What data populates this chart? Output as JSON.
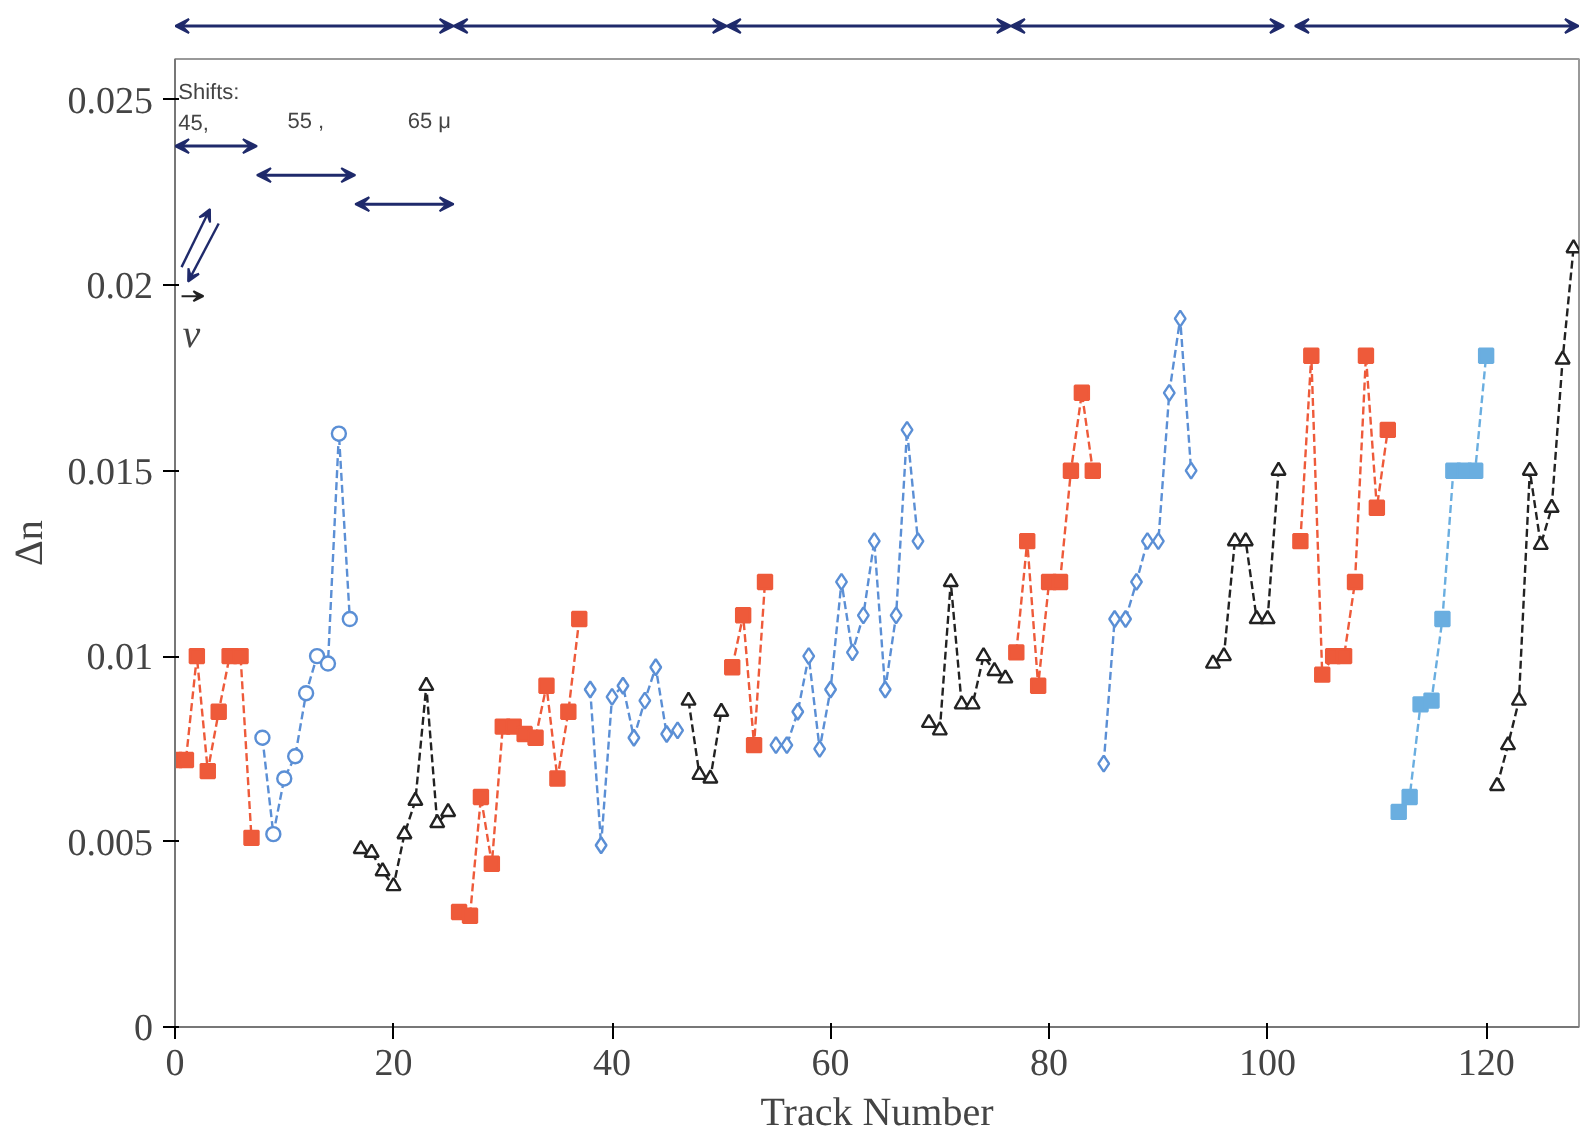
{
  "chart_data": {
    "type": "line",
    "xlabel": "Track Number",
    "ylabel": "Δn",
    "xlim": [
      0,
      128.5
    ],
    "ylim": [
      0,
      0.0261
    ],
    "xticks": [
      0,
      20,
      40,
      60,
      80,
      100,
      120
    ],
    "yticks": [
      0,
      0.005,
      0.01,
      0.015,
      0.02,
      0.025
    ],
    "grid": false,
    "line_style": "dashed",
    "annotations": [
      "Shifts:",
      "45,",
      "55 ,",
      "65 μ",
      "v"
    ],
    "series": [
      {
        "color": "#ee5a3a",
        "marker": "square",
        "x": [
          0,
          1,
          2,
          3,
          4,
          5,
          6,
          7
        ],
        "values": [
          0.0072,
          0.0072,
          0.01,
          0.0069,
          0.0085,
          0.01,
          0.01,
          0.0051
        ]
      },
      {
        "color": "#5b8fd5",
        "marker": "circle",
        "x": [
          8,
          9,
          10,
          11,
          12,
          13,
          14,
          15,
          16
        ],
        "values": [
          0.0078,
          0.0052,
          0.0067,
          0.0073,
          0.009,
          0.01,
          0.0098,
          0.016,
          0.011
        ]
      },
      {
        "color": "#222222",
        "marker": "triangle",
        "x": [
          17,
          18,
          19,
          20,
          21,
          22,
          23,
          24,
          25
        ],
        "values": [
          0.0048,
          0.0047,
          0.0042,
          0.0038,
          0.0052,
          0.0061,
          0.0092,
          0.0055,
          0.0058
        ]
      },
      {
        "color": "#ee5a3a",
        "marker": "square",
        "x": [
          26,
          27,
          28,
          29,
          30,
          31,
          32,
          33,
          34,
          35,
          36,
          37
        ],
        "values": [
          0.0031,
          0.003,
          0.0062,
          0.0044,
          0.0081,
          0.0081,
          0.0079,
          0.0078,
          0.0092,
          0.0067,
          0.0085,
          0.011
        ]
      },
      {
        "color": "#5b8fd5",
        "marker": "diamond",
        "x": [
          38,
          39,
          40,
          41,
          42,
          43,
          44,
          45,
          46
        ],
        "values": [
          0.0091,
          0.0049,
          0.0089,
          0.0092,
          0.0078,
          0.0088,
          0.0097,
          0.0079,
          0.008
        ]
      },
      {
        "color": "#222222",
        "marker": "triangle",
        "x": [
          47,
          48,
          49,
          50
        ],
        "values": [
          0.0088,
          0.0068,
          0.0067,
          0.0085
        ]
      },
      {
        "color": "#ee5a3a",
        "marker": "square",
        "x": [
          51,
          52,
          53,
          54
        ],
        "values": [
          0.0097,
          0.0111,
          0.0076,
          0.012
        ]
      },
      {
        "color": "#5b8fd5",
        "marker": "diamond",
        "x": [
          55,
          56,
          57,
          58,
          59,
          60,
          61,
          62,
          63,
          64,
          65,
          66,
          67,
          68
        ],
        "values": [
          0.0076,
          0.0076,
          0.0085,
          0.01,
          0.0075,
          0.0091,
          0.012,
          0.0101,
          0.0111,
          0.0131,
          0.0091,
          0.0111,
          0.0161,
          0.0131
        ]
      },
      {
        "color": "#222222",
        "marker": "triangle",
        "x": [
          69,
          70,
          71,
          72,
          73,
          74,
          75,
          76
        ],
        "values": [
          0.0082,
          0.008,
          0.012,
          0.0087,
          0.0087,
          0.01,
          0.0096,
          0.0094
        ]
      },
      {
        "color": "#ee5a3a",
        "marker": "square",
        "x": [
          77,
          78,
          79,
          80,
          81,
          82,
          83,
          84
        ],
        "values": [
          0.0101,
          0.0131,
          0.0092,
          0.012,
          0.012,
          0.015,
          0.0171,
          0.015
        ]
      },
      {
        "color": "#5b8fd5",
        "marker": "diamond",
        "x": [
          85,
          86,
          87,
          88,
          89,
          90,
          91,
          92,
          93
        ],
        "values": [
          0.0071,
          0.011,
          0.011,
          0.012,
          0.0131,
          0.0131,
          0.0171,
          0.0191,
          0.015
        ]
      },
      {
        "color": "#222222",
        "marker": "triangle",
        "x": [
          95,
          96,
          97,
          98,
          99,
          100,
          101
        ],
        "values": [
          0.0098,
          0.01,
          0.0131,
          0.0131,
          0.011,
          0.011,
          0.015
        ]
      },
      {
        "color": "#ee5a3a",
        "marker": "square",
        "x": [
          103,
          104,
          105,
          106,
          107,
          108,
          109,
          110,
          111
        ],
        "values": [
          0.0131,
          0.0181,
          0.0095,
          0.01,
          0.01,
          0.012,
          0.0181,
          0.014,
          0.0161
        ]
      },
      {
        "color": "#6aaee0",
        "marker": "square",
        "x": [
          112,
          113,
          114,
          115,
          116,
          117,
          118,
          119,
          120
        ],
        "values": [
          0.0058,
          0.0062,
          0.0087,
          0.0088,
          0.011,
          0.015,
          0.015,
          0.015,
          0.0181
        ]
      },
      {
        "color": "#222222",
        "marker": "triangle",
        "x": [
          121,
          122,
          123,
          124,
          125,
          126,
          127,
          128
        ],
        "values": [
          0.0065,
          0.0076,
          0.0088,
          0.015,
          0.013,
          0.014,
          0.018,
          0.021
        ]
      }
    ]
  }
}
